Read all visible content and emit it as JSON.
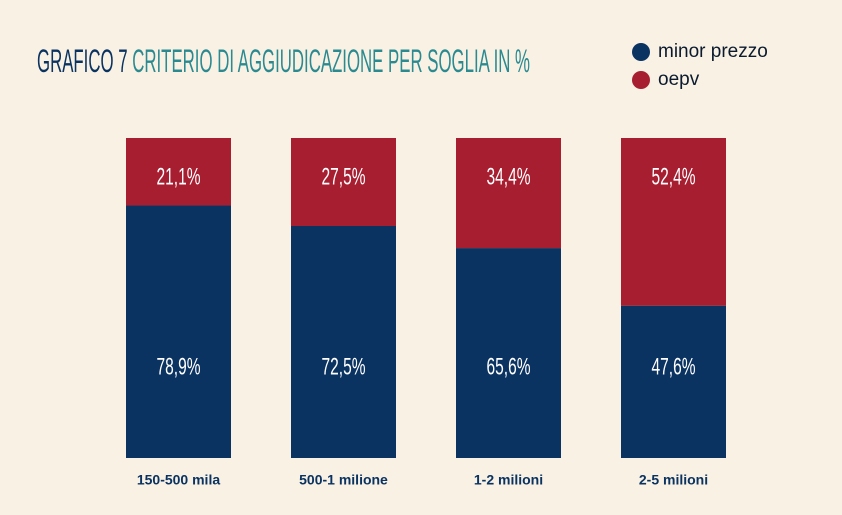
{
  "chart_data": {
    "type": "stacked_bar",
    "title_label": "GRAFICO 7",
    "title": "CRITERIO DI AGGIUDICAZIONE PER SOGLIA IN %",
    "categories": [
      "150-500 mila",
      "500-1 milione",
      "1-2 milioni",
      "2-5 milioni"
    ],
    "ylim": [
      0,
      100
    ],
    "series": [
      {
        "name": "minor prezzo",
        "color": "#0b3361",
        "values": [
          78.9,
          72.5,
          65.6,
          47.6
        ],
        "value_labels": [
          "78,9%",
          "72,5%",
          "65,6%",
          "47,6%"
        ]
      },
      {
        "name": "oepv",
        "color": "#a61e30",
        "values": [
          21.1,
          27.5,
          34.4,
          52.4
        ],
        "value_labels": [
          "21,1%",
          "27,5%",
          "34,4%",
          "52,4%"
        ]
      }
    ]
  }
}
